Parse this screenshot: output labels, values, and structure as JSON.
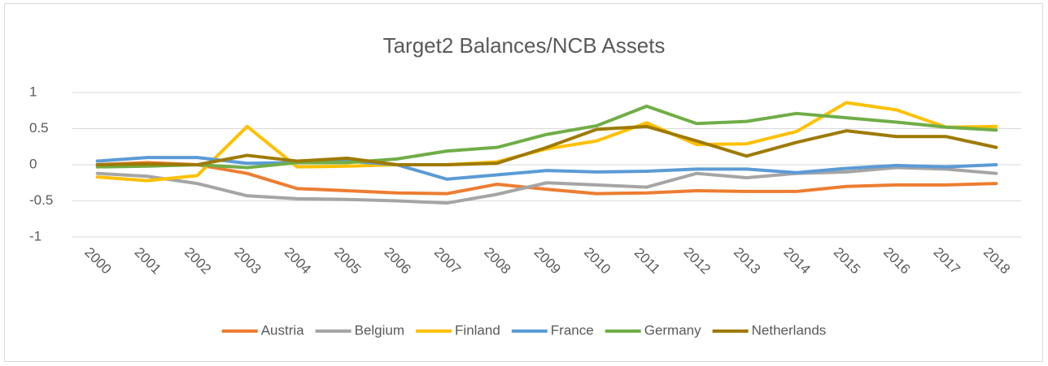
{
  "chart_data": {
    "type": "line",
    "title": "Target2 Balances/NCB Assets",
    "categories": [
      "2000",
      "2001",
      "2002",
      "2003",
      "2004",
      "2005",
      "2006",
      "2007",
      "2008",
      "2009",
      "2010",
      "2011",
      "2012",
      "2013",
      "2014",
      "2015",
      "2016",
      "2017",
      "2018"
    ],
    "series": [
      {
        "name": "Austria",
        "color": "#ed7d31",
        "values": [
          0.0,
          0.03,
          0.0,
          -0.12,
          -0.33,
          -0.36,
          -0.39,
          -0.4,
          -0.27,
          -0.34,
          -0.4,
          -0.39,
          -0.36,
          -0.37,
          -0.37,
          -0.3,
          -0.28,
          -0.28,
          -0.26
        ]
      },
      {
        "name": "Belgium",
        "color": "#a5a5a5",
        "values": [
          -0.12,
          -0.16,
          -0.26,
          -0.43,
          -0.47,
          -0.48,
          -0.5,
          -0.53,
          -0.41,
          -0.25,
          -0.28,
          -0.31,
          -0.12,
          -0.18,
          -0.12,
          -0.1,
          -0.04,
          -0.06,
          -0.12
        ]
      },
      {
        "name": "Finland",
        "color": "#ffc000",
        "values": [
          -0.17,
          -0.22,
          -0.15,
          0.53,
          -0.03,
          -0.02,
          0.0,
          0.0,
          0.04,
          0.22,
          0.33,
          0.58,
          0.28,
          0.29,
          0.46,
          0.86,
          0.76,
          0.52,
          0.53
        ]
      },
      {
        "name": "France",
        "color": "#5b9bd5",
        "values": [
          0.05,
          0.1,
          0.1,
          0.02,
          0.03,
          0.05,
          0.0,
          -0.2,
          -0.14,
          -0.08,
          -0.1,
          -0.09,
          -0.06,
          -0.06,
          -0.11,
          -0.05,
          -0.01,
          -0.03,
          0.0
        ]
      },
      {
        "name": "Germany",
        "color": "#70ad47",
        "values": [
          -0.03,
          -0.02,
          0.0,
          -0.04,
          0.03,
          0.03,
          0.08,
          0.19,
          0.24,
          0.42,
          0.54,
          0.81,
          0.57,
          0.6,
          0.71,
          0.65,
          0.59,
          0.52,
          0.48
        ]
      },
      {
        "name": "Netherlands",
        "color": "#9e7a00",
        "values": [
          0.0,
          0.01,
          0.0,
          0.13,
          0.05,
          0.09,
          0.0,
          0.0,
          0.02,
          0.24,
          0.49,
          0.53,
          0.33,
          0.12,
          0.31,
          0.47,
          0.39,
          0.39,
          0.24
        ]
      }
    ],
    "ylim": [
      -1,
      1
    ],
    "yticks": [
      1,
      0.5,
      0,
      -0.5,
      -1
    ],
    "grid": true,
    "legend": "bottom"
  }
}
